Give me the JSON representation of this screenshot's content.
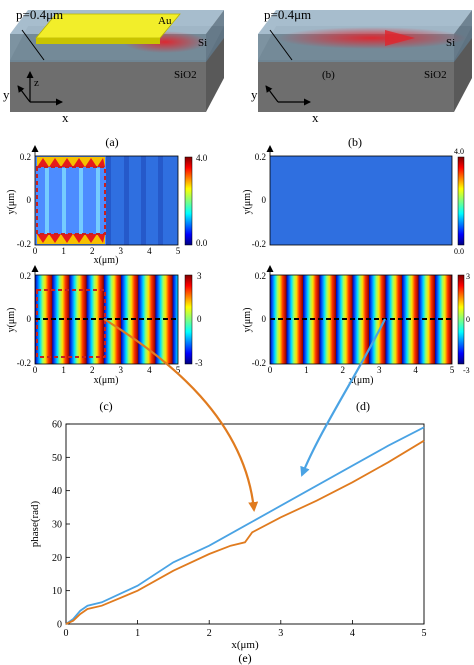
{
  "panel_a": {
    "period_label": "p=0.4μm",
    "metal_label": "Au",
    "core_label": "Si",
    "substrate_label": "SiO2",
    "axis_y": "y",
    "axis_z": "z",
    "axis_x": "x",
    "caption": "(a)"
  },
  "panel_b": {
    "period_label": "p=0.4μm",
    "core_label": "Si",
    "substrate_label": "SiO2",
    "inner_label": "(b)",
    "axis_y": "y",
    "axis_x": "x",
    "caption": "(b)"
  },
  "colors": {
    "au": "#f2ee2a",
    "waveguide_top": "#9fb7c9",
    "waveguide_front": "#6f8797",
    "substrate_top": "#a4a4a4",
    "substrate_front": "#6e6e6e",
    "mode_glow": "#e0242c",
    "curve_orange": "#e07b1f",
    "curve_blue": "#4aa3e4",
    "field_blue": "#2f6fe0",
    "jet_low": "#00007f",
    "jet_high": "#7f0000"
  },
  "heatmaps": {
    "y_label": "y(μm)",
    "x_label": "x(μm)",
    "x_ticks": [
      "0",
      "1",
      "2",
      "3",
      "4",
      "5"
    ],
    "y_ticks": [
      "0.2",
      "0",
      "-0.2"
    ],
    "amp_colorbar": [
      "4.0",
      "0.0"
    ],
    "phase_colorbar": [
      "3",
      "0",
      "-3"
    ],
    "caption_c": "(c)",
    "caption_d": "(d)"
  },
  "chart_data": {
    "type": "line",
    "xlabel": "x(μm)",
    "ylabel": "phase(rad)",
    "xlim": [
      0,
      5
    ],
    "ylim": [
      0,
      60
    ],
    "x_ticks": [
      0,
      1,
      2,
      3,
      4,
      5
    ],
    "y_ticks": [
      0,
      10,
      20,
      30,
      40,
      50,
      60
    ],
    "caption": "(e)",
    "series": [
      {
        "color": "#4aa3e4",
        "x": [
          0,
          0.1,
          0.2,
          0.3,
          0.5,
          1.0,
          1.5,
          2.0,
          2.5,
          3.0,
          3.5,
          4.0,
          4.5,
          5.0
        ],
        "y": [
          0,
          1.5,
          4.0,
          5.5,
          6.5,
          11.5,
          18.5,
          23.5,
          29.5,
          35.5,
          41.5,
          47.5,
          53.5,
          59.0
        ]
      },
      {
        "color": "#e07b1f",
        "x": [
          0,
          0.1,
          0.2,
          0.3,
          0.5,
          1.0,
          1.5,
          2.0,
          2.3,
          2.5,
          2.6,
          3.0,
          3.5,
          4.0,
          4.5,
          5.0
        ],
        "y": [
          0,
          1.0,
          3.0,
          4.5,
          5.5,
          10.0,
          16.0,
          21.0,
          23.5,
          24.5,
          27.5,
          32.0,
          37.0,
          42.5,
          48.5,
          55.0
        ]
      }
    ]
  }
}
